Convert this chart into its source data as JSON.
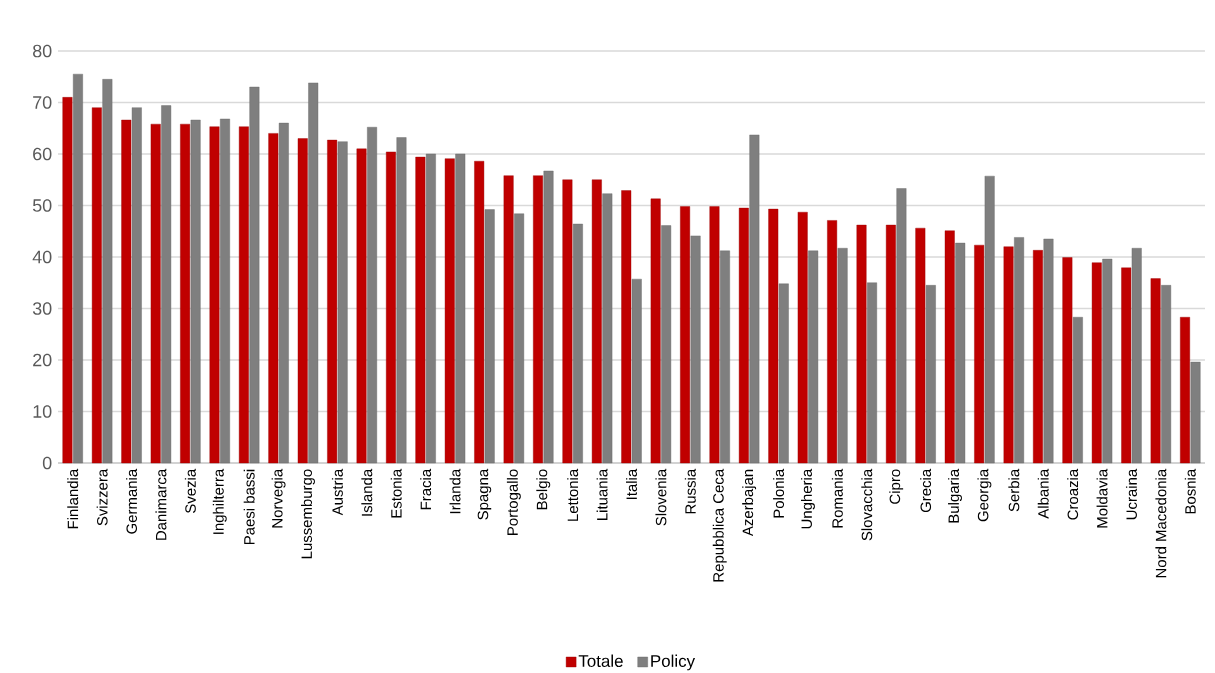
{
  "chart_data": {
    "type": "bar",
    "categories": [
      "Finlandia",
      "Svizzera",
      "Germania",
      "Danimarca",
      "Svezia",
      "Inghilterra",
      "Paesi bassi",
      "Norvegia",
      "Lussemburgo",
      "Austria",
      "Islanda",
      "Estonia",
      "Fracia",
      "Irlanda",
      "Spagna",
      "Portogallo",
      "Belgio",
      "Lettonia",
      "Lituania",
      "Italia",
      "Slovenia",
      "Russia",
      "Repubblica Ceca",
      "Azerbajan",
      "Polonia",
      "Ungheria",
      "Romania",
      "Slovacchia",
      "Cipro",
      "Grecia",
      "Bulgaria",
      "Georgia",
      "Serbia",
      "Albania",
      "Croazia",
      "Moldavia",
      "Ucraina",
      "Nord Macedonia",
      "Bosnia"
    ],
    "series": [
      {
        "name": "Totale",
        "color": "#c00000",
        "values": [
          71,
          69,
          66.6,
          65.8,
          65.8,
          65.3,
          65.3,
          64,
          63,
          62.7,
          61,
          60.4,
          59.4,
          59.1,
          58.6,
          55.8,
          55.8,
          55,
          55,
          52.9,
          51.3,
          49.8,
          49.8,
          49.5,
          49.3,
          48.7,
          47.1,
          46.2,
          46.2,
          45.6,
          45.1,
          42.3,
          42,
          41.3,
          39.9,
          38.9,
          37.9,
          35.8,
          28.3
        ]
      },
      {
        "name": "Policy",
        "color": "#7f7f7f",
        "values": [
          75.5,
          74.5,
          69,
          69.4,
          66.6,
          66.8,
          73,
          66,
          73.8,
          62.4,
          65.2,
          63.2,
          60,
          60,
          49.2,
          48.4,
          56.7,
          46.4,
          52.3,
          35.7,
          46.1,
          44.1,
          41.2,
          63.7,
          34.8,
          41.2,
          41.7,
          35,
          53.3,
          34.5,
          42.7,
          55.7,
          43.8,
          43.5,
          28.3,
          39.6,
          41.7,
          34.5,
          19.6
        ]
      }
    ],
    "ylim": [
      0,
      80
    ],
    "yticks": [
      0,
      10,
      20,
      30,
      40,
      50,
      60,
      70,
      80
    ],
    "grid": "y",
    "legend": "bottom"
  }
}
